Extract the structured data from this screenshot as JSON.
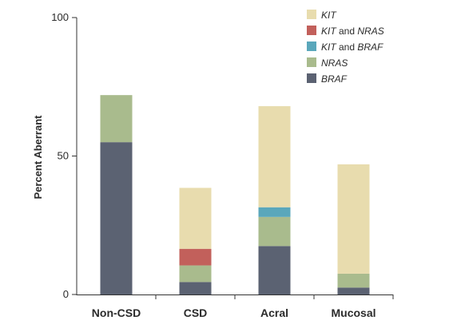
{
  "chart_data": {
    "type": "bar",
    "stacked": true,
    "categories": [
      "Non-CSD",
      "CSD",
      "Acral",
      "Mucosal"
    ],
    "ylabel": "Percent Aberrant",
    "ylim": [
      0,
      100
    ],
    "yticks": [
      "0",
      "50",
      "100"
    ],
    "grid": false,
    "legend_position": "top-right",
    "series": [
      {
        "name": "BRAF",
        "legend": [
          {
            "text": "BRAF",
            "italic": true
          }
        ],
        "color": "#5b6272",
        "values": [
          55,
          4.5,
          17.5,
          2.5
        ]
      },
      {
        "name": "NRAS",
        "legend": [
          {
            "text": "NRAS",
            "italic": true
          }
        ],
        "color": "#a9bb8d",
        "values": [
          17,
          6,
          10.5,
          5
        ]
      },
      {
        "name": "KIT and BRAF",
        "legend": [
          {
            "text": "KIT",
            "italic": true
          },
          {
            "text": " and ",
            "italic": false
          },
          {
            "text": "BRAF",
            "italic": true
          }
        ],
        "color": "#5aa7bb",
        "values": [
          0,
          0,
          3.5,
          0
        ]
      },
      {
        "name": "KIT and NRAS",
        "legend": [
          {
            "text": "KIT",
            "italic": true
          },
          {
            "text": " and ",
            "italic": false
          },
          {
            "text": "NRAS",
            "italic": true
          }
        ],
        "color": "#c2605b",
        "values": [
          0,
          6,
          0,
          0
        ]
      },
      {
        "name": "KIT",
        "legend": [
          {
            "text": "KIT",
            "italic": true
          }
        ],
        "color": "#e8dcae",
        "values": [
          0,
          22,
          36.5,
          39.5
        ]
      }
    ]
  }
}
